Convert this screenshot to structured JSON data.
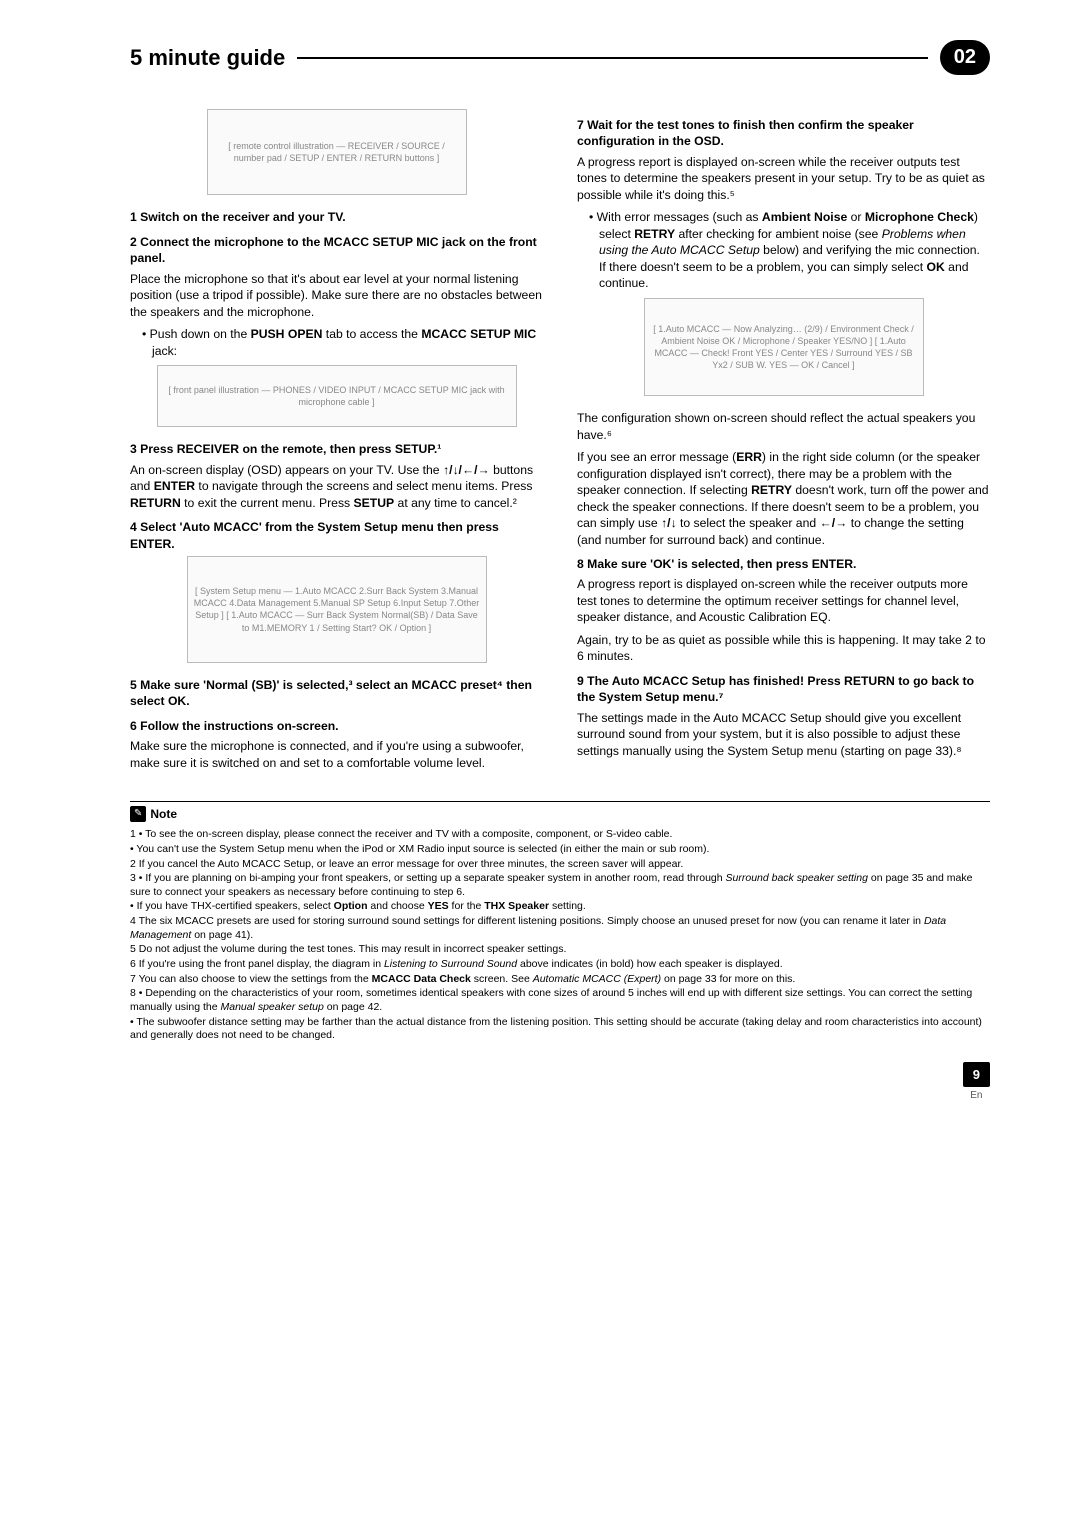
{
  "header": {
    "title": "5 minute guide",
    "chapter": "02"
  },
  "left": {
    "fig_remote_label": "[ remote control illustration — RECEIVER / SOURCE / number pad / SETUP / ENTER / RETURN buttons ]",
    "step1_hd": "1   Switch on the receiver and your TV.",
    "step2_hd": "2   Connect the microphone to the MCACC SETUP MIC jack on the front panel.",
    "step2_p1": "Place the microphone so that it's about ear level at your normal listening position (use a tripod if possible). Make sure there are no obstacles between the speakers and the microphone.",
    "step2_b1a": "Push down on the ",
    "step2_b1b": "PUSH OPEN",
    "step2_b1c": " tab to access the ",
    "step2_b1d": "MCACC SETUP MIC",
    "step2_b1e": " jack:",
    "fig_jack_label": "[ front panel illustration — PHONES / VIDEO INPUT / MCACC SETUP MIC jack with microphone cable ]",
    "step3_hd": "3   Press RECEIVER on the remote, then press SETUP.¹",
    "step3_p1a": "An on-screen display (OSD) appears on your TV. Use the ",
    "step3_p1b": "↑/↓/←/→",
    "step3_p1c": " buttons and ",
    "step3_p1d": "ENTER",
    "step3_p1e": " to navigate through the screens and select menu items. Press ",
    "step3_p1f": "RETURN",
    "step3_p1g": " to exit the current menu. Press ",
    "step3_p1h": "SETUP",
    "step3_p1i": " at any time to cancel.²",
    "step4_hd": "4   Select 'Auto MCACC' from the System Setup menu then press ENTER.",
    "fig_menus_label": "[ System Setup menu — 1.Auto MCACC 2.Surr Back System 3.Manual MCACC 4.Data Management 5.Manual SP Setup 6.Input Setup 7.Other Setup ]  [ 1.Auto MCACC — Surr Back System Normal(SB) / Data Save to M1.MEMORY 1 / Setting Start? OK / Option ]",
    "step5_hd": "5   Make sure 'Normal (SB)' is selected,³ select an MCACC preset⁴ then select OK.",
    "step6_hd": "6   Follow the instructions on-screen.",
    "step6_p1": "Make sure the microphone is connected, and if you're using a subwoofer, make sure it is switched on and set to a comfortable volume level."
  },
  "right": {
    "step7_hd": "7   Wait for the test tones to finish then confirm the speaker configuration in the OSD.",
    "step7_p1": "A progress report is displayed on-screen while the receiver outputs test tones to determine the speakers present in your setup. Try to be as quiet as possible while it's doing this.⁵",
    "step7_b1a": "With error messages (such as ",
    "step7_b1b": "Ambient Noise",
    "step7_b1c": " or ",
    "step7_b1d": "Microphone Check",
    "step7_b1e": ") select ",
    "step7_b1f": "RETRY",
    "step7_b1g": " after checking for ambient noise (see ",
    "step7_b1h": "Problems when using the Auto MCACC Setup",
    "step7_b1i": " below) and verifying the mic connection. If there doesn't seem to be a problem, you can simply select ",
    "step7_b1j": "OK",
    "step7_b1k": " and continue.",
    "fig_analyze_label": "[ 1.Auto MCACC — Now Analyzing… (2/9) / Environment Check / Ambient Noise OK / Microphone / Speaker YES/NO ]  [ 1.Auto MCACC — Check! Front YES / Center YES / Surround YES / SB Yx2 / SUB W. YES — OK / Cancel ]",
    "step7_p2": "The configuration shown on-screen should reflect the actual speakers you have.⁶",
    "step7_p3a": "If you see an error message (",
    "step7_p3b": "ERR",
    "step7_p3c": ") in the right side column (or the speaker configuration displayed isn't correct), there may be a problem with the speaker connection. If selecting ",
    "step7_p3d": "RETRY",
    "step7_p3e": " doesn't work, turn off the power and check the speaker connections. If there doesn't seem to be a problem, you can simply use ",
    "step7_p3f": "↑/↓",
    "step7_p3g": " to select the speaker and ",
    "step7_p3h": "←/→",
    "step7_p3i": " to change the setting (and number for surround back) and continue.",
    "step8_hd": "8   Make sure 'OK' is selected, then press ENTER.",
    "step8_p1": "A progress report is displayed on-screen while the receiver outputs more test tones to determine the optimum receiver settings for channel level, speaker distance, and Acoustic Calibration EQ.",
    "step8_p2": "Again, try to be as quiet as possible while this is happening. It may take 2 to 6 minutes.",
    "step9_hd": "9   The Auto MCACC Setup has finished! Press RETURN to go back to the System Setup menu.⁷",
    "step9_p1": "The settings made in the Auto MCACC Setup should give you excellent surround sound from your system, but it is also possible to adjust these settings manually using the System Setup menu (starting on page 33).⁸"
  },
  "notes": {
    "label": "Note",
    "n1a": "1 • To see the on-screen display, please connect the receiver and TV with a composite, component, or S-video cable.",
    "n1b": "   • You can't use the System Setup menu when the iPod or XM Radio input source is selected (in either the main or sub room).",
    "n2": "2 If you cancel the Auto MCACC Setup, or leave an error message for over three minutes, the screen saver will appear.",
    "n3a": "3 • If you are planning on bi-amping your front speakers, or setting up a separate speaker system in another room, read through ",
    "n3b": "Surround back speaker setting",
    "n3c": " on page 35 and make sure to connect your speakers as necessary before continuing to step 6.",
    "n3d": "   • If you have THX-certified speakers, select ",
    "n3e": "Option",
    "n3f": " and choose ",
    "n3g": "YES",
    "n3h": " for the ",
    "n3i": "THX Speaker",
    "n3j": " setting.",
    "n4a": "4 The six MCACC presets are used for storing surround sound settings for different listening positions. Simply choose an unused preset for now (you can rename it later in ",
    "n4b": "Data Management",
    "n4c": " on page 41).",
    "n5": "5 Do not adjust the volume during the test tones. This may result in incorrect speaker settings.",
    "n6a": "6 If you're using the front panel display, the diagram in ",
    "n6b": "Listening to Surround Sound",
    "n6c": " above indicates (in bold) how each speaker is displayed.",
    "n7a": "7 You can also choose to view the settings from the ",
    "n7b": "MCACC Data Check",
    "n7c": " screen. See ",
    "n7d": "Automatic MCACC (Expert)",
    "n7e": " on page 33 for more on this.",
    "n8a": "8 • Depending on the characteristics of your room, sometimes identical speakers with cone sizes of around 5 inches will end up with different size settings. You can correct the setting manually using the ",
    "n8b": "Manual speaker setup",
    "n8c": " on page 42.",
    "n8d": "   • The subwoofer distance setting may be farther than the actual distance from the listening position. This setting should be accurate (taking delay and room characteristics into account) and generally does not need to be changed."
  },
  "footer": {
    "page": "9",
    "lang": "En"
  }
}
